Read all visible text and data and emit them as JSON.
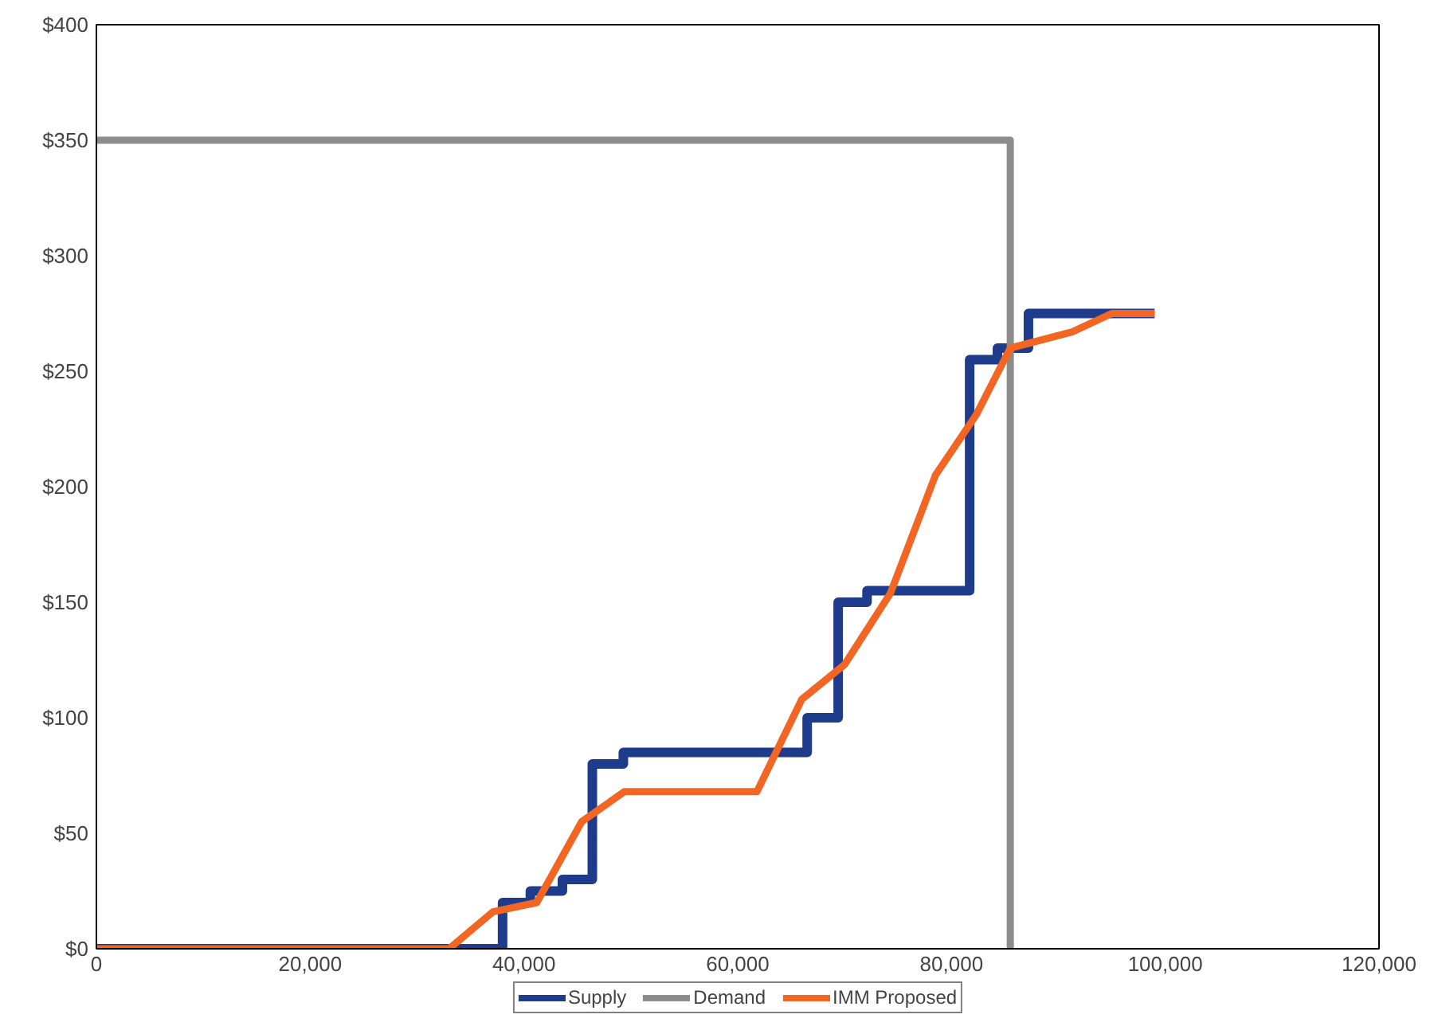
{
  "chart_data": {
    "type": "line",
    "xlim": [
      0,
      120000
    ],
    "ylim": [
      0,
      400
    ],
    "xticks": [
      0,
      {
        "value": 20000,
        "label": "20,000"
      },
      {
        "value": 40000,
        "label": "40,000"
      },
      {
        "value": 60000,
        "label": "60,000"
      },
      {
        "value": 80000,
        "label": "80,000"
      },
      {
        "value": 100000,
        "label": "100,000"
      },
      {
        "value": 120000,
        "label": "120,000"
      }
    ],
    "yticks": [
      {
        "value": 0,
        "label": "$0"
      },
      {
        "value": 50,
        "label": "$50"
      },
      {
        "value": 100,
        "label": "$100"
      },
      {
        "value": 150,
        "label": "$150"
      },
      {
        "value": 200,
        "label": "$200"
      },
      {
        "value": 250,
        "label": "$250"
      },
      {
        "value": 300,
        "label": "$300"
      },
      {
        "value": 350,
        "label": "$350"
      },
      {
        "value": 400,
        "label": "$400"
      }
    ],
    "grid": false,
    "legend": "bottom",
    "marker": "none",
    "line_style": "solid",
    "series": [
      {
        "name": "Supply",
        "type": "step",
        "color": "#1f3c8c",
        "x": [
          0,
          38000,
          40600,
          43600,
          46400,
          49300,
          66500,
          69400,
          72100,
          81700,
          84300,
          87200,
          99000
        ],
        "values": [
          0,
          20,
          25,
          30,
          80,
          85,
          100,
          150,
          155,
          255,
          260,
          275,
          275
        ]
      },
      {
        "name": "Demand",
        "color": "#8c8c8c",
        "x": [
          0,
          85500,
          85500
        ],
        "values": [
          350,
          350,
          0
        ]
      },
      {
        "name": "IMM Proposed",
        "color": "#f26522",
        "x": [
          0,
          33000,
          37100,
          41200,
          45400,
          49400,
          61800,
          66000,
          70000,
          74300,
          78500,
          82300,
          85500,
          91300,
          95000,
          99000
        ],
        "values": [
          0,
          0,
          16,
          20,
          55,
          68,
          68,
          108,
          123,
          154,
          205,
          231,
          260,
          267,
          275,
          275
        ]
      }
    ]
  }
}
